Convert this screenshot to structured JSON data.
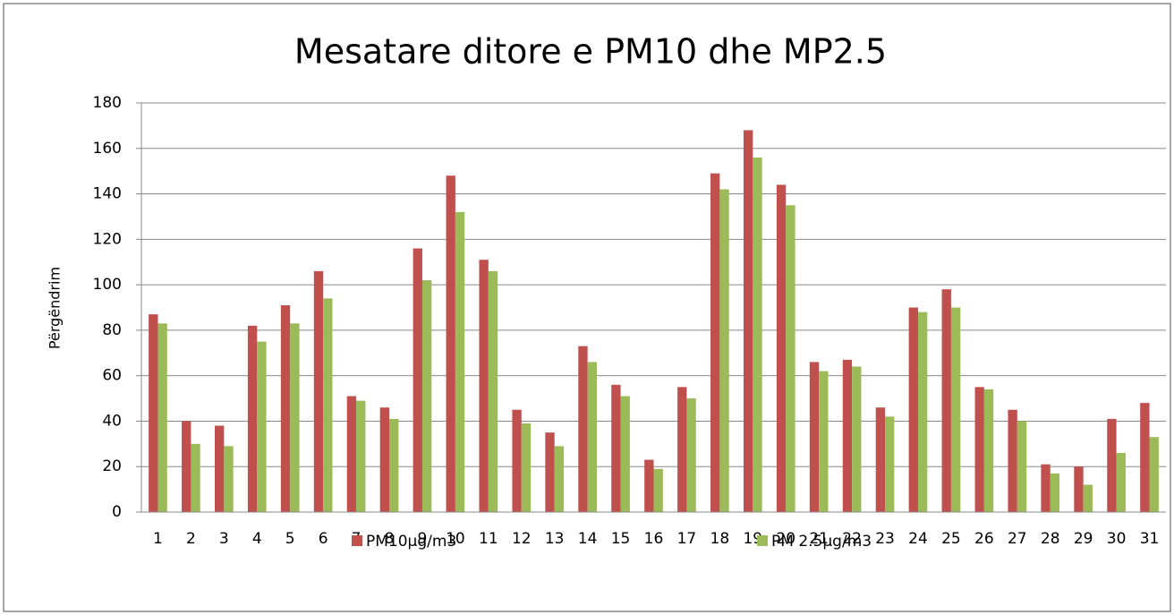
{
  "chart_data": {
    "type": "bar",
    "title": "Mesatare ditore e PM10 dhe MP2.5",
    "y_label": "Përgëndrim",
    "categories": [
      "1",
      "2",
      "3",
      "4",
      "5",
      "6",
      "7",
      "8",
      "9",
      "10",
      "11",
      "12",
      "13",
      "14",
      "15",
      "16",
      "17",
      "18",
      "19",
      "20",
      "21",
      "22",
      "23",
      "24",
      "25",
      "26",
      "27",
      "28",
      "29",
      "30",
      "31"
    ],
    "series": [
      {
        "name": "PM10µg/m3",
        "color": "#c0504d",
        "values": [
          87,
          40,
          38,
          82,
          91,
          106,
          51,
          46,
          116,
          148,
          111,
          45,
          35,
          73,
          56,
          23,
          55,
          149,
          168,
          144,
          66,
          67,
          46,
          90,
          98,
          55,
          45,
          21,
          20,
          41,
          48
        ]
      },
      {
        "name": "PM 2.5µg/m3",
        "color": "#9bbb59",
        "values": [
          83,
          30,
          29,
          75,
          83,
          94,
          49,
          41,
          102,
          132,
          106,
          39,
          29,
          66,
          51,
          19,
          50,
          142,
          156,
          135,
          62,
          64,
          42,
          88,
          90,
          54,
          40,
          17,
          12,
          26,
          33
        ]
      }
    ],
    "ylim": [
      0,
      180
    ],
    "yticks": [
      0,
      20,
      40,
      60,
      80,
      100,
      120,
      140,
      160,
      180
    ],
    "grid": true,
    "legend": "bottom"
  }
}
